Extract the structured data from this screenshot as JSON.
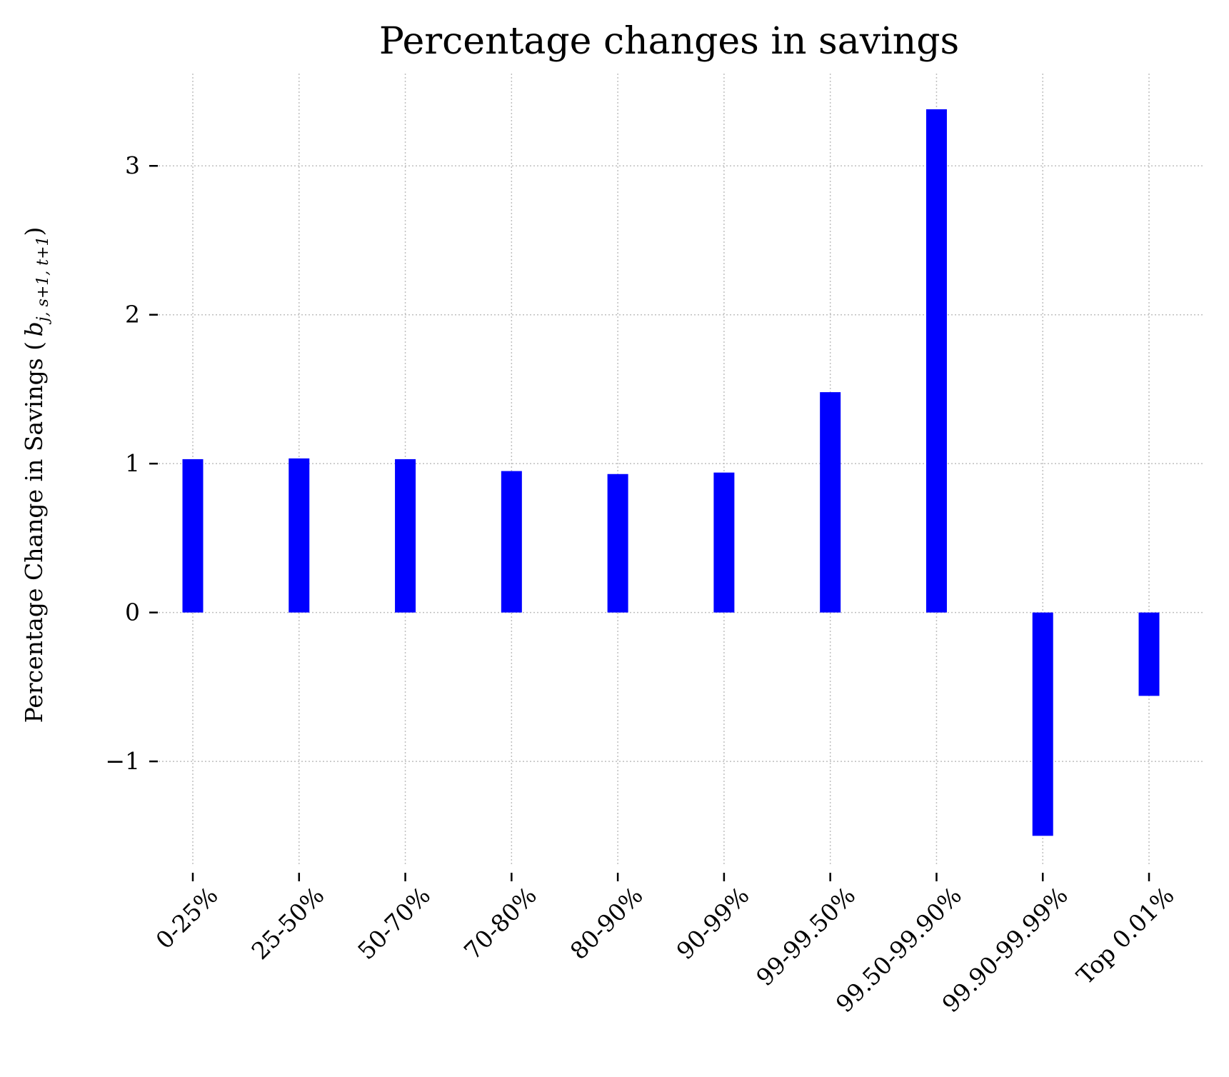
{
  "chart_data": {
    "type": "bar",
    "title": "Percentage changes in savings",
    "xlabel": "",
    "ylabel": "Percentage Change in Savings (",
    "ylabel_math": {
      "base": "b",
      "subscript": "j, s+1, t+1"
    },
    "ylabel_close": ")",
    "categories": [
      "0-25%",
      "25-50%",
      "50-70%",
      "70-80%",
      "80-90%",
      "90-99%",
      "99-99.50%",
      "99.50-99.90%",
      "99.90-99.99%",
      "Top 0.01%"
    ],
    "series": [
      {
        "values": [
          1.03,
          1.035,
          1.03,
          0.95,
          0.93,
          0.94,
          1.48,
          3.38,
          -1.5,
          -0.56
        ],
        "color": "#0000ff"
      }
    ],
    "ylim": [
      -1.7,
      3.62
    ],
    "yticks": [
      -1,
      0,
      1,
      2,
      3
    ],
    "ytick_labels": [
      "−1",
      "0",
      "1",
      "2",
      "3"
    ],
    "grid": true,
    "legend": "none"
  }
}
